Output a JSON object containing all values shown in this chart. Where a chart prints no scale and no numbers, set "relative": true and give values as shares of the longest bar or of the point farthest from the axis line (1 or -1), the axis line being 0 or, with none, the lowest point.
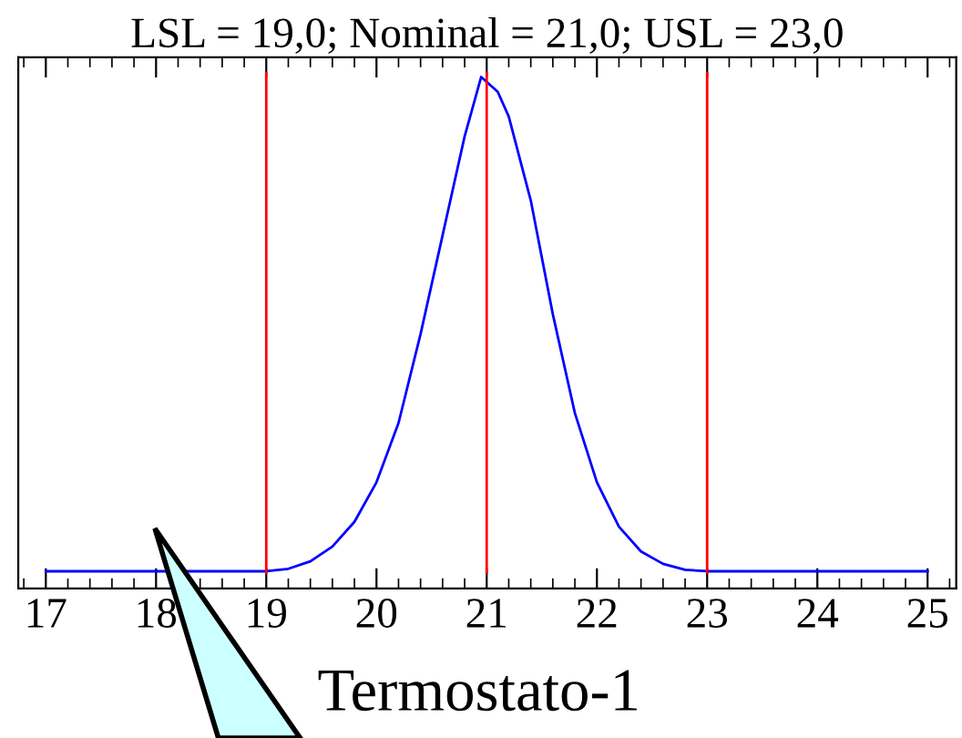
{
  "chart_data": {
    "type": "line",
    "title": "LSL = 19,0; Nominal = 21,0; USL = 23,0",
    "relative": true,
    "x": [
      17,
      18,
      19,
      19.2,
      19.4,
      19.6,
      19.8,
      20.0,
      20.2,
      20.4,
      20.6,
      20.8,
      20.95,
      21.1,
      21.2,
      21.4,
      21.6,
      21.8,
      22.0,
      22.2,
      22.4,
      22.6,
      22.8,
      23,
      24,
      25
    ],
    "series": [
      {
        "color": "#0000ff",
        "values": [
          0,
          0,
          0,
          0.005,
          0.02,
          0.05,
          0.1,
          0.18,
          0.3,
          0.48,
          0.68,
          0.88,
          1.0,
          0.97,
          0.92,
          0.75,
          0.52,
          0.32,
          0.18,
          0.09,
          0.04,
          0.015,
          0.003,
          0,
          0,
          0
        ]
      }
    ],
    "xlim": [
      16.75,
      25.26
    ],
    "xticks": [
      17,
      18,
      19,
      20,
      21,
      22,
      23,
      24,
      25
    ],
    "ref_lines": [
      {
        "axis": "x",
        "value": 19,
        "color": "#ff0000"
      },
      {
        "axis": "x",
        "value": 21,
        "color": "#ff0000"
      },
      {
        "axis": "x",
        "value": 23,
        "color": "#ff0000"
      }
    ],
    "annotations": [
      "Termostato-1"
    ],
    "tick_labels": "x",
    "grid": false,
    "marker": "none",
    "line_style": "solid"
  }
}
